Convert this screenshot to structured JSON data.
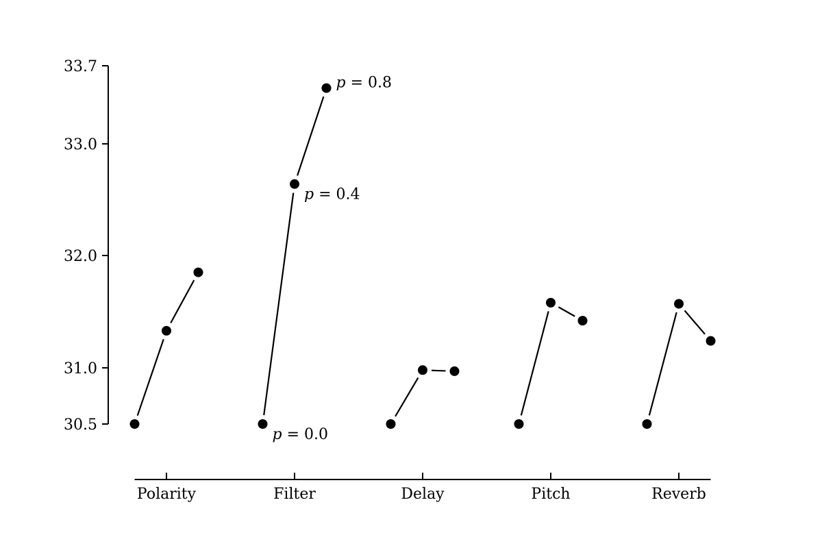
{
  "chart_data": {
    "type": "line",
    "title": "",
    "xlabel": "",
    "ylabel": "",
    "categories": [
      "Polarity",
      "Filter",
      "Delay",
      "Pitch",
      "Reverb"
    ],
    "x_values": [
      0.0,
      0.4,
      0.8
    ],
    "yticks": [
      "30.5",
      "31.0",
      "32.0",
      "33.0",
      "33.7"
    ],
    "ylim": [
      30.5,
      33.7
    ],
    "y_scale": "piecewise",
    "groups": [
      {
        "category": "Polarity",
        "values": [
          30.5,
          31.33,
          31.85
        ]
      },
      {
        "category": "Filter",
        "values": [
          30.5,
          32.64,
          33.5
        ]
      },
      {
        "category": "Delay",
        "values": [
          30.5,
          30.98,
          30.97
        ]
      },
      {
        "category": "Pitch",
        "values": [
          30.5,
          31.58,
          31.42
        ]
      },
      {
        "category": "Reverb",
        "values": [
          30.5,
          31.57,
          31.24
        ]
      }
    ],
    "annotations": [
      {
        "category": "Filter",
        "index": 0,
        "label_var": "p",
        "label_rest": " = 0.0"
      },
      {
        "category": "Filter",
        "index": 1,
        "label_var": "p",
        "label_rest": " = 0.4"
      },
      {
        "category": "Filter",
        "index": 2,
        "label_var": "p",
        "label_rest": " = 0.8"
      }
    ],
    "marker": "circle",
    "line_color": "#000000",
    "marker_color": "#000000",
    "grid": false,
    "legend": "none"
  }
}
